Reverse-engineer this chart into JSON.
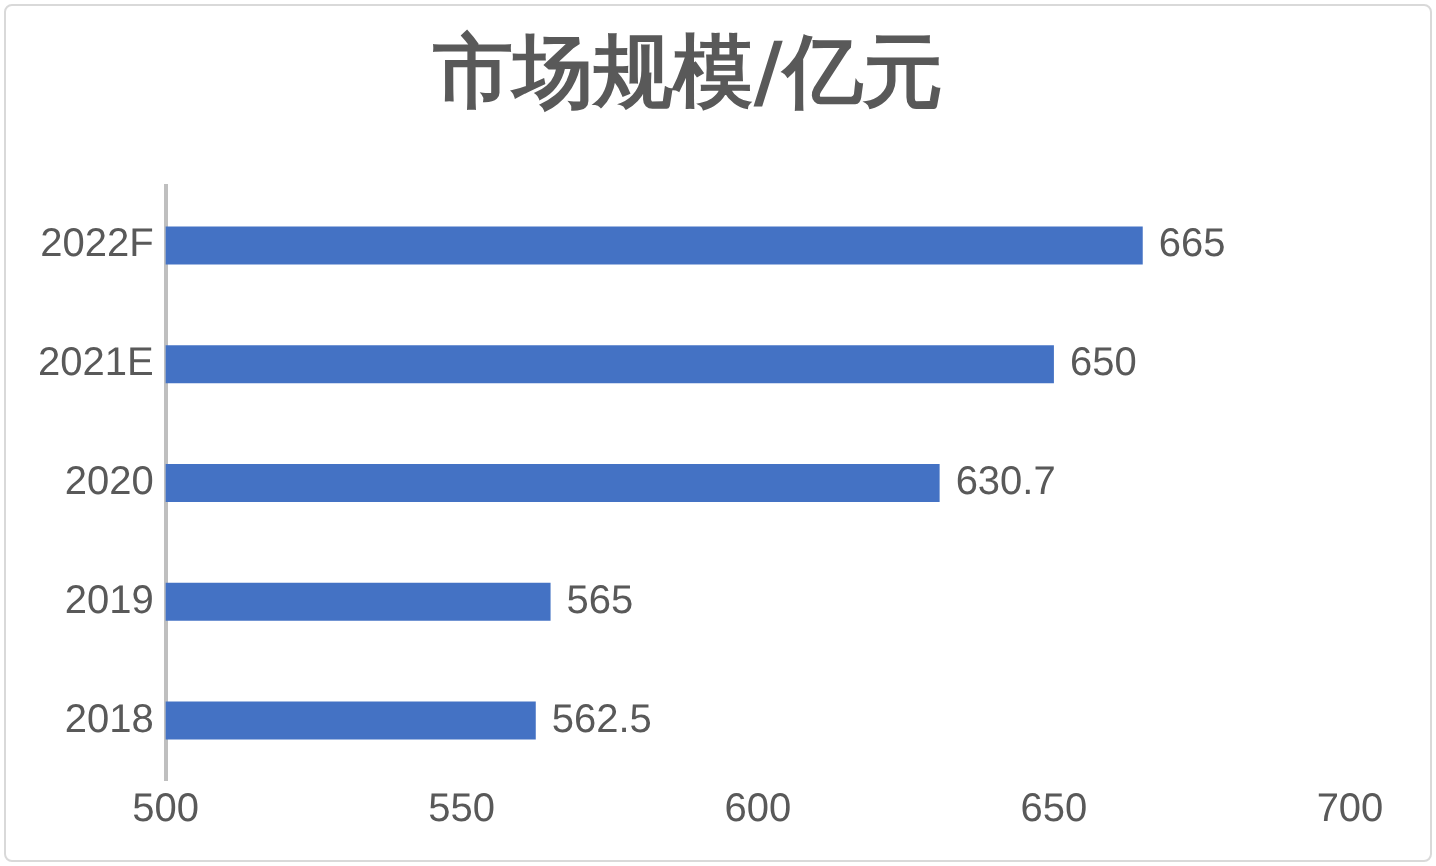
{
  "chart_data": {
    "type": "bar",
    "orientation": "horizontal",
    "title": "市场规模/亿元",
    "categories": [
      "2022F",
      "2021E",
      "2020",
      "2019",
      "2018"
    ],
    "values": [
      665,
      650,
      630.7,
      565,
      562.5
    ],
    "color": "#4472c4",
    "xlim": [
      500,
      700
    ],
    "xticks": [
      500,
      550,
      600,
      650,
      700
    ],
    "grid": false,
    "data_labels": true,
    "legend": false
  }
}
